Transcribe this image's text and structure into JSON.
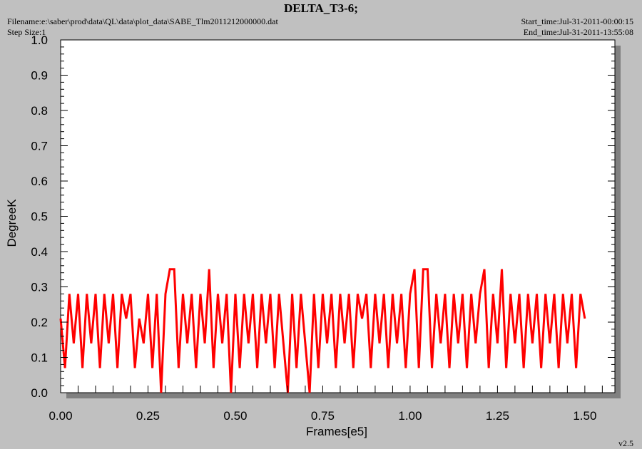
{
  "chart_data": {
    "type": "line",
    "title": "DELTA_T3-6;",
    "filename": "Filename:e:\\saber\\prod\\data\\QL\\data\\plot_data\\SABE_Tlm2011212000000.dat",
    "step_size": "Step Size:1",
    "start_time": "Start_time:Jul-31-2011-00:00:15",
    "end_time": "End_time:Jul-31-2011-13:55:08",
    "version": "v2.5",
    "x_label": "Frames[e5]",
    "y_label": "DegreeK",
    "color": "#ff0000",
    "xlim": [
      0,
      1.586
    ],
    "ylim": [
      0,
      1
    ],
    "xticks": [
      {
        "value": 0,
        "label": "0.00"
      },
      {
        "value": 0.25,
        "label": "0.25"
      },
      {
        "value": 0.5,
        "label": "0.50"
      },
      {
        "value": 0.75,
        "label": "0.75"
      },
      {
        "value": 1,
        "label": "1.00"
      },
      {
        "value": 1.25,
        "label": "1.25"
      },
      {
        "value": 1.5,
        "label": "1.50"
      }
    ],
    "yticks": [
      {
        "value": 0,
        "label": "0.0"
      },
      0.1,
      0.2,
      0.3,
      0.4,
      0.5,
      0.6,
      0.7,
      0.8,
      0.9,
      {
        "value": 1,
        "label": "1.0"
      }
    ],
    "xminorticks": [
      0.05,
      0.1,
      0.15,
      0.2,
      0.3,
      0.35,
      0.4,
      0.45,
      0.55,
      0.6,
      0.65,
      0.7,
      0.8,
      0.85,
      0.9,
      0.95,
      1.05,
      1.1,
      1.15,
      1.2,
      1.3,
      1.35,
      1.4,
      1.45,
      1.55
    ],
    "yminorticks": [
      0.02,
      0.04,
      0.06,
      0.08,
      0.12,
      0.14,
      0.16,
      0.18,
      0.22,
      0.24,
      0.26,
      0.28,
      0.32,
      0.34,
      0.36,
      0.38,
      0.42,
      0.44,
      0.46,
      0.48,
      0.52,
      0.54,
      0.56,
      0.58,
      0.62,
      0.64,
      0.66,
      0.68,
      0.72,
      0.74,
      0.76,
      0.78,
      0.82,
      0.84,
      0.86,
      0.88,
      0.92,
      0.94,
      0.96,
      0.98
    ],
    "x": [
      0,
      0.0125,
      0.025,
      0.0375,
      0.05,
      0.0625,
      0.075,
      0.0875,
      0.1,
      0.1125,
      0.125,
      0.1375,
      0.15,
      0.1625,
      0.175,
      0.1875,
      0.2,
      0.2125,
      0.225,
      0.2375,
      0.25,
      0.2625,
      0.275,
      0.2875,
      0.3,
      0.3125,
      0.325,
      0.3375,
      0.35,
      0.3625,
      0.375,
      0.3875,
      0.4,
      0.4125,
      0.425,
      0.4375,
      0.45,
      0.4625,
      0.475,
      0.4875,
      0.5,
      0.5125,
      0.525,
      0.5375,
      0.55,
      0.5625,
      0.575,
      0.5875,
      0.6,
      0.6125,
      0.625,
      0.6375,
      0.65,
      0.6625,
      0.675,
      0.6875,
      0.7,
      0.7125,
      0.725,
      0.7375,
      0.75,
      0.7625,
      0.775,
      0.7875,
      0.8,
      0.8125,
      0.825,
      0.8375,
      0.85,
      0.8625,
      0.875,
      0.8875,
      0.9,
      0.9125,
      0.925,
      0.9375,
      0.95,
      0.9625,
      0.975,
      0.9875,
      1,
      1.0125,
      1.025,
      1.0375,
      1.05,
      1.0625,
      1.075,
      1.0875,
      1.1,
      1.1125,
      1.125,
      1.1375,
      1.15,
      1.1625,
      1.175,
      1.1875,
      1.2,
      1.2125,
      1.225,
      1.2375,
      1.25,
      1.2625,
      1.275,
      1.2875,
      1.3,
      1.3125,
      1.325,
      1.3375,
      1.35,
      1.3625,
      1.375,
      1.3875,
      1.4,
      1.4125,
      1.425,
      1.4375,
      1.45,
      1.4625,
      1.475,
      1.4875,
      1.5
    ],
    "values": [
      0.21,
      0.07,
      0.28,
      0.14,
      0.28,
      0.07,
      0.28,
      0.14,
      0.28,
      0.07,
      0.28,
      0.14,
      0.28,
      0.07,
      0.28,
      0.21,
      0.28,
      0.07,
      0.21,
      0.14,
      0.28,
      0.07,
      0.28,
      0,
      0.28,
      0.35,
      0.35,
      0.07,
      0.28,
      0.14,
      0.28,
      0.07,
      0.28,
      0.14,
      0.35,
      0.07,
      0.28,
      0.14,
      0.28,
      0,
      0.28,
      0.07,
      0.28,
      0.14,
      0.28,
      0.07,
      0.28,
      0.14,
      0.28,
      0.07,
      0.28,
      0.14,
      0,
      0.28,
      0.07,
      0.28,
      0.14,
      0,
      0.28,
      0.07,
      0.28,
      0.14,
      0.28,
      0.07,
      0.28,
      0.14,
      0.28,
      0.07,
      0.28,
      0.21,
      0.28,
      0.07,
      0.28,
      0.14,
      0.28,
      0.07,
      0.28,
      0.14,
      0.28,
      0.07,
      0.28,
      0.35,
      0.07,
      0.35,
      0.35,
      0.07,
      0.28,
      0.14,
      0.28,
      0.07,
      0.28,
      0.14,
      0.28,
      0.07,
      0.28,
      0.14,
      0.28,
      0.35,
      0.07,
      0.28,
      0.14,
      0.35,
      0.07,
      0.28,
      0.14,
      0.28,
      0.07,
      0.28,
      0.14,
      0.28,
      0.07,
      0.28,
      0.14,
      0.28,
      0.07,
      0.28,
      0.14,
      0.28,
      0.07,
      0.28,
      0.21
    ]
  }
}
